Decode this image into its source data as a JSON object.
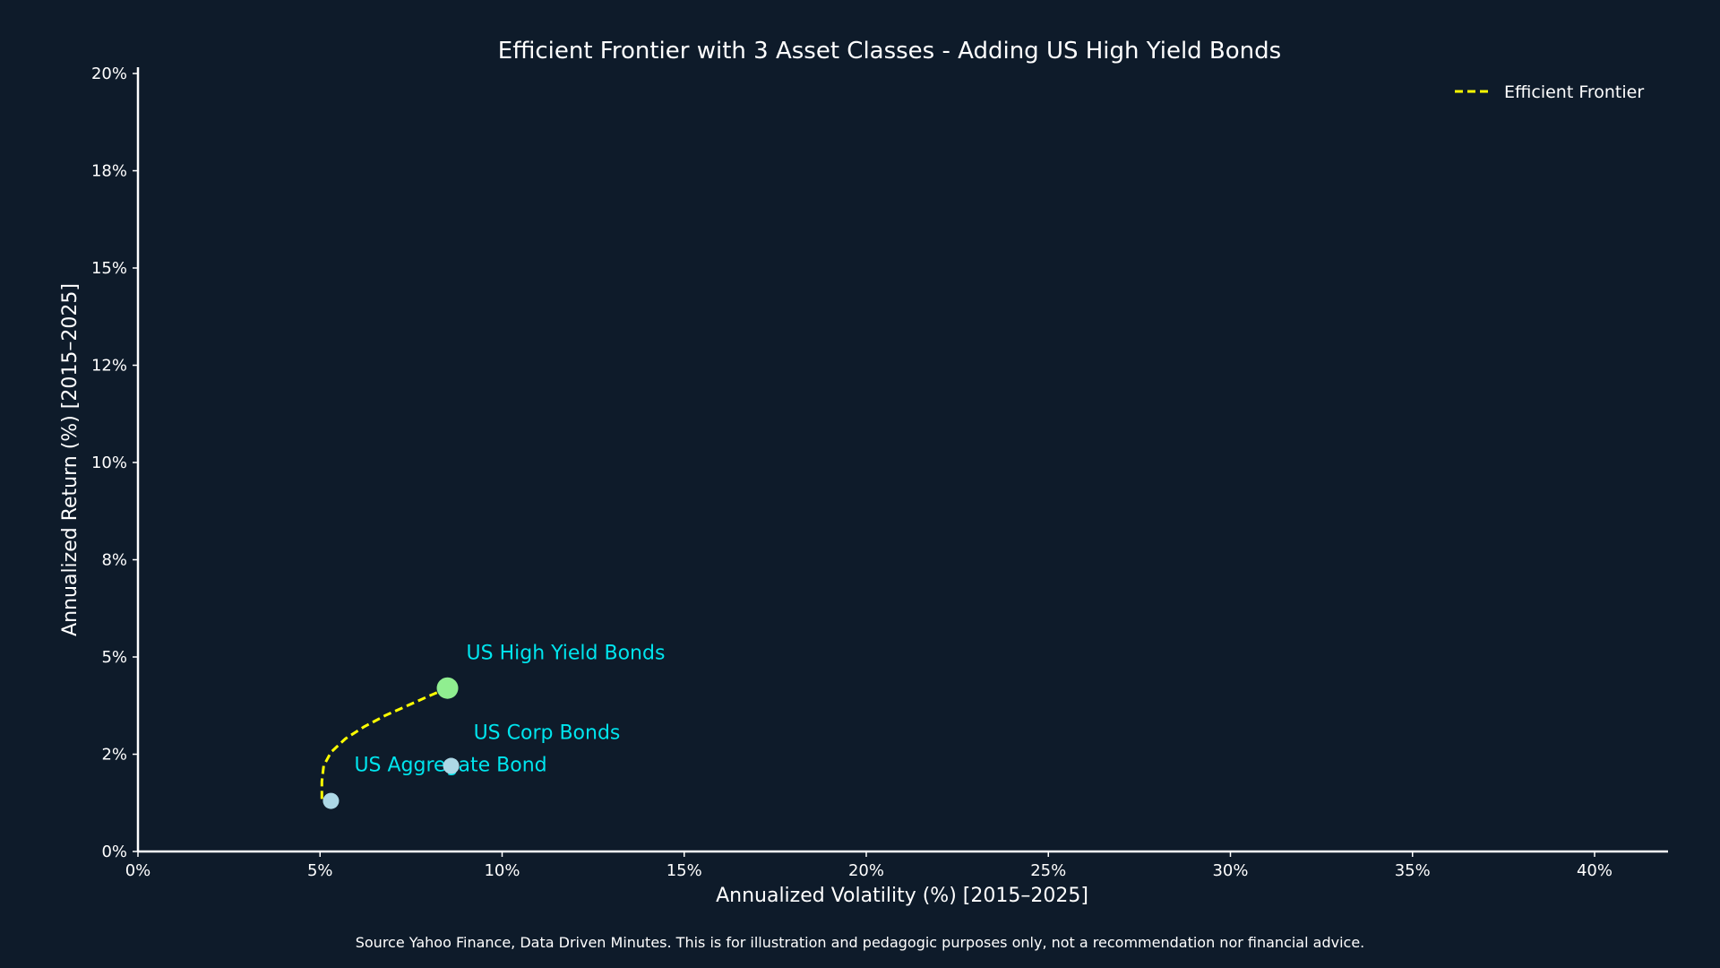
{
  "chart_data": {
    "type": "scatter",
    "title": "Efficient Frontier with 3 Asset Classes - Adding US High Yield Bonds",
    "xlabel": "Annualized Volatility (%) [2015–2025]",
    "ylabel": "Annualized Return (%) [2015–2025]",
    "xlim": [
      0,
      42
    ],
    "ylim": [
      0,
      20
    ],
    "x_ticks": [
      0,
      5,
      10,
      15,
      20,
      25,
      30,
      35,
      40
    ],
    "x_tick_labels": [
      "0%",
      "5%",
      "10%",
      "15%",
      "20%",
      "25%",
      "30%",
      "35%",
      "40%"
    ],
    "y_ticks": [
      0,
      2.5,
      5,
      7.5,
      10,
      12.5,
      15,
      17.5,
      20
    ],
    "y_tick_labels": [
      "0%",
      "2%",
      "5%",
      "8%",
      "10%",
      "12%",
      "15%",
      "18%",
      "20%"
    ],
    "grid": false,
    "legend_position": "top-right",
    "legend": [
      {
        "label": "Efficient Frontier",
        "style": "dashed",
        "color": "#ffff00"
      }
    ],
    "assets": [
      {
        "name": "US Aggregate Bond",
        "x": 5.3,
        "y": 1.3,
        "color": "#add8e6",
        "label_color": "#00e5ee"
      },
      {
        "name": "US Corp Bonds",
        "x": 8.6,
        "y": 2.2,
        "color": "#add8e6",
        "label_color": "#00e5ee"
      },
      {
        "name": "US High Yield Bonds",
        "x": 8.5,
        "y": 4.2,
        "color": "#90ee90",
        "label_color": "#00e5ee"
      }
    ],
    "frontier": {
      "name": "Efficient Frontier",
      "color": "#ffff00",
      "x": [
        5.05,
        5.05,
        5.1,
        5.3,
        5.7,
        6.2,
        6.8,
        7.4,
        8.0,
        8.5
      ],
      "y": [
        1.35,
        1.8,
        2.2,
        2.55,
        2.9,
        3.2,
        3.5,
        3.75,
        4.0,
        4.2
      ]
    },
    "colors": {
      "background": "#0e1b2a",
      "axis": "#ffffff",
      "text": "#ffffff",
      "annotation": "#00e5ee"
    }
  },
  "footnote": "Source Yahoo Finance, Data Driven Minutes. This is for illustration and pedagogic purposes only, not a recommendation nor financial advice."
}
